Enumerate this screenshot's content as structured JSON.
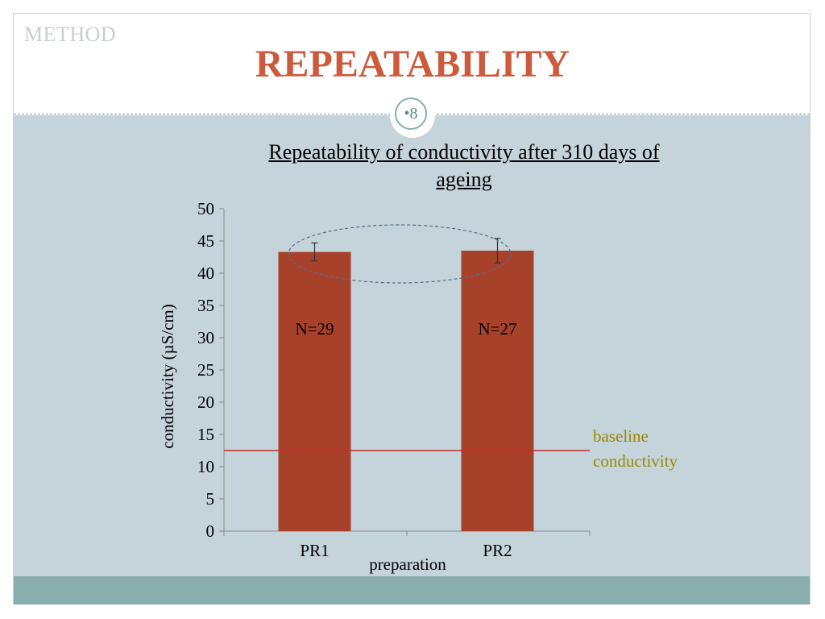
{
  "slide": {
    "section_label": "METHOD",
    "title": "REPEATABILITY",
    "page_number": "•8"
  },
  "colors": {
    "title": "#cc5a3c",
    "bar": "#a8412a",
    "baseline": "#c0302a",
    "baseline_label": "#9a8a00",
    "content_bg": "#c5d3da",
    "footer": "#8aadad"
  },
  "chart_data": {
    "type": "bar",
    "title": "Repeatability of conductivity after 310 days of ageing",
    "xlabel": "preparation",
    "ylabel": "conductivity (µS/cm)",
    "ylim": [
      0,
      50
    ],
    "yticks": [
      0,
      5,
      10,
      15,
      20,
      25,
      30,
      35,
      40,
      45,
      50
    ],
    "categories": [
      "PR1",
      "PR2"
    ],
    "values": [
      43.3,
      43.5
    ],
    "errors": [
      1.4,
      1.9
    ],
    "bar_labels": [
      "N=29",
      "N=27"
    ],
    "baseline": {
      "value": 12.5,
      "label_lines": [
        "baseline",
        "conductivity"
      ]
    },
    "grid": false,
    "legend": "none"
  }
}
